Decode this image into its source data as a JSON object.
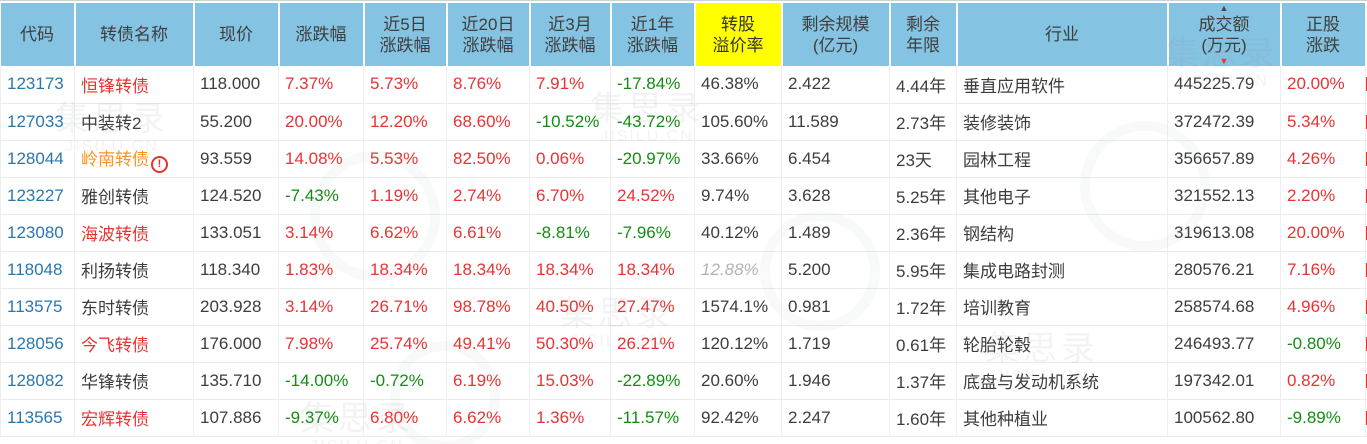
{
  "table": {
    "columns": [
      {
        "key": "code",
        "label": "代码"
      },
      {
        "key": "name",
        "label": "转债名称"
      },
      {
        "key": "price",
        "label": "现价"
      },
      {
        "key": "chg",
        "label": "涨跌幅"
      },
      {
        "key": "chg5d",
        "label": "近5日\n涨跌幅"
      },
      {
        "key": "chg20d",
        "label": "近20日\n涨跌幅"
      },
      {
        "key": "chg3m",
        "label": "近3月\n涨跌幅"
      },
      {
        "key": "chg1y",
        "label": "近1年\n涨跌幅"
      },
      {
        "key": "premium",
        "label": "转股\n溢价率",
        "highlight": true
      },
      {
        "key": "size",
        "label": "剩余规模\n(亿元)"
      },
      {
        "key": "remain",
        "label": "剩余\n年限"
      },
      {
        "key": "industry",
        "label": "行业"
      },
      {
        "key": "turnover",
        "label": "成交额\n(万元)",
        "sorted": "desc"
      },
      {
        "key": "stock",
        "label": "正股\n涨跌"
      },
      {
        "key": "sliver",
        "label": ""
      }
    ],
    "sort": {
      "column": "turnover",
      "direction": "desc",
      "up_glyph": "▲",
      "down_glyph": "▼"
    },
    "rows": [
      {
        "code": "123173",
        "name": "恒锋转债",
        "name_color": "red",
        "warning": false,
        "price": "118.000",
        "chg": {
          "v": "7.37%",
          "c": "up"
        },
        "chg5d": {
          "v": "5.73%",
          "c": "up"
        },
        "chg20d": {
          "v": "8.76%",
          "c": "up"
        },
        "chg3m": {
          "v": "7.91%",
          "c": "up"
        },
        "chg1y": {
          "v": "-17.84%",
          "c": "down"
        },
        "premium": {
          "v": "46.38%",
          "c": "flat"
        },
        "size": "2.422",
        "remain": "4.44年",
        "industry": "垂直应用软件",
        "turnover": "445225.79",
        "stock": {
          "v": "20.00%",
          "c": "up"
        }
      },
      {
        "code": "127033",
        "name": "中装转2",
        "name_color": "black",
        "warning": false,
        "price": "55.200",
        "chg": {
          "v": "20.00%",
          "c": "up"
        },
        "chg5d": {
          "v": "12.20%",
          "c": "up"
        },
        "chg20d": {
          "v": "68.60%",
          "c": "up"
        },
        "chg3m": {
          "v": "-10.52%",
          "c": "down"
        },
        "chg1y": {
          "v": "-43.72%",
          "c": "down"
        },
        "premium": {
          "v": "105.60%",
          "c": "flat"
        },
        "size": "11.589",
        "remain": "2.73年",
        "industry": "装修装饰",
        "turnover": "372472.39",
        "stock": {
          "v": "5.34%",
          "c": "up"
        }
      },
      {
        "code": "128044",
        "name": "岭南转债",
        "name_color": "orange",
        "warning": true,
        "price": "93.559",
        "chg": {
          "v": "14.08%",
          "c": "up"
        },
        "chg5d": {
          "v": "5.53%",
          "c": "up"
        },
        "chg20d": {
          "v": "82.50%",
          "c": "up"
        },
        "chg3m": {
          "v": "0.06%",
          "c": "up"
        },
        "chg1y": {
          "v": "-20.97%",
          "c": "down"
        },
        "premium": {
          "v": "33.66%",
          "c": "flat"
        },
        "size": "6.454",
        "remain": "23天",
        "industry": "园林工程",
        "turnover": "356657.89",
        "stock": {
          "v": "4.26%",
          "c": "up"
        }
      },
      {
        "code": "123227",
        "name": "雅创转债",
        "name_color": "black",
        "warning": false,
        "price": "124.520",
        "chg": {
          "v": "-7.43%",
          "c": "down"
        },
        "chg5d": {
          "v": "1.19%",
          "c": "up"
        },
        "chg20d": {
          "v": "2.74%",
          "c": "up"
        },
        "chg3m": {
          "v": "6.70%",
          "c": "up"
        },
        "chg1y": {
          "v": "24.52%",
          "c": "up"
        },
        "premium": {
          "v": "9.74%",
          "c": "flat"
        },
        "size": "3.628",
        "remain": "5.25年",
        "industry": "其他电子",
        "turnover": "321552.13",
        "stock": {
          "v": "2.20%",
          "c": "up"
        }
      },
      {
        "code": "123080",
        "name": "海波转债",
        "name_color": "red",
        "warning": false,
        "price": "133.051",
        "chg": {
          "v": "3.14%",
          "c": "up"
        },
        "chg5d": {
          "v": "6.62%",
          "c": "up"
        },
        "chg20d": {
          "v": "6.61%",
          "c": "up"
        },
        "chg3m": {
          "v": "-8.81%",
          "c": "down"
        },
        "chg1y": {
          "v": "-7.96%",
          "c": "down"
        },
        "premium": {
          "v": "40.12%",
          "c": "flat"
        },
        "size": "1.489",
        "remain": "2.36年",
        "industry": "钢结构",
        "turnover": "319613.08",
        "stock": {
          "v": "20.00%",
          "c": "up"
        }
      },
      {
        "code": "118048",
        "name": "利扬转债",
        "name_color": "black",
        "warning": false,
        "price": "118.340",
        "chg": {
          "v": "1.83%",
          "c": "up"
        },
        "chg5d": {
          "v": "18.34%",
          "c": "up"
        },
        "chg20d": {
          "v": "18.34%",
          "c": "up"
        },
        "chg3m": {
          "v": "18.34%",
          "c": "up"
        },
        "chg1y": {
          "v": "18.34%",
          "c": "up"
        },
        "premium": {
          "v": "12.88%",
          "c": "muted"
        },
        "size": "5.200",
        "remain": "5.95年",
        "industry": "集成电路封测",
        "turnover": "280576.21",
        "stock": {
          "v": "7.16%",
          "c": "up"
        }
      },
      {
        "code": "113575",
        "name": "东时转债",
        "name_color": "black",
        "warning": false,
        "price": "203.928",
        "chg": {
          "v": "3.14%",
          "c": "up"
        },
        "chg5d": {
          "v": "26.71%",
          "c": "up"
        },
        "chg20d": {
          "v": "98.78%",
          "c": "up"
        },
        "chg3m": {
          "v": "40.50%",
          "c": "up"
        },
        "chg1y": {
          "v": "27.47%",
          "c": "up"
        },
        "premium": {
          "v": "1574.1%",
          "c": "flat"
        },
        "size": "0.981",
        "remain": "1.72年",
        "industry": "培训教育",
        "turnover": "258574.68",
        "stock": {
          "v": "4.96%",
          "c": "up"
        }
      },
      {
        "code": "128056",
        "name": "今飞转债",
        "name_color": "red",
        "warning": false,
        "price": "176.000",
        "chg": {
          "v": "7.98%",
          "c": "up"
        },
        "chg5d": {
          "v": "25.74%",
          "c": "up"
        },
        "chg20d": {
          "v": "49.41%",
          "c": "up"
        },
        "chg3m": {
          "v": "50.30%",
          "c": "up"
        },
        "chg1y": {
          "v": "26.21%",
          "c": "up"
        },
        "premium": {
          "v": "120.12%",
          "c": "flat"
        },
        "size": "1.719",
        "remain": "0.61年",
        "industry": "轮胎轮毂",
        "turnover": "246493.77",
        "stock": {
          "v": "-0.80%",
          "c": "down"
        }
      },
      {
        "code": "128082",
        "name": "华锋转债",
        "name_color": "black",
        "warning": false,
        "price": "135.710",
        "chg": {
          "v": "-14.00%",
          "c": "down"
        },
        "chg5d": {
          "v": "-0.72%",
          "c": "down"
        },
        "chg20d": {
          "v": "6.19%",
          "c": "up"
        },
        "chg3m": {
          "v": "15.03%",
          "c": "up"
        },
        "chg1y": {
          "v": "-22.89%",
          "c": "down"
        },
        "premium": {
          "v": "20.60%",
          "c": "flat"
        },
        "size": "1.946",
        "remain": "1.37年",
        "industry": "底盘与发动机系统",
        "turnover": "197342.01",
        "stock": {
          "v": "0.82%",
          "c": "up"
        }
      },
      {
        "code": "113565",
        "name": "宏辉转债",
        "name_color": "red",
        "warning": false,
        "price": "107.886",
        "chg": {
          "v": "-9.37%",
          "c": "down"
        },
        "chg5d": {
          "v": "6.80%",
          "c": "up"
        },
        "chg20d": {
          "v": "6.62%",
          "c": "up"
        },
        "chg3m": {
          "v": "1.36%",
          "c": "up"
        },
        "chg1y": {
          "v": "-11.57%",
          "c": "down"
        },
        "premium": {
          "v": "92.42%",
          "c": "flat"
        },
        "size": "2.247",
        "remain": "1.60年",
        "industry": "其他种植业",
        "turnover": "100562.80",
        "stock": {
          "v": "-9.89%",
          "c": "down"
        }
      }
    ]
  },
  "warning_icon_glyph": "!",
  "watermark": {
    "line1": "集思录",
    "line2": "JISILU.CN"
  },
  "colors": {
    "header_bg": "#85c3e2",
    "header_highlight_bg": "#ffff00",
    "up_red": "#e83333",
    "down_green": "#128d12",
    "code_blue": "#2a77af",
    "name_orange": "#ff931e",
    "text_dark": "#3d3d3d",
    "muted_gray": "#b3b3b3",
    "sort_arrow_active": "#e83333"
  }
}
